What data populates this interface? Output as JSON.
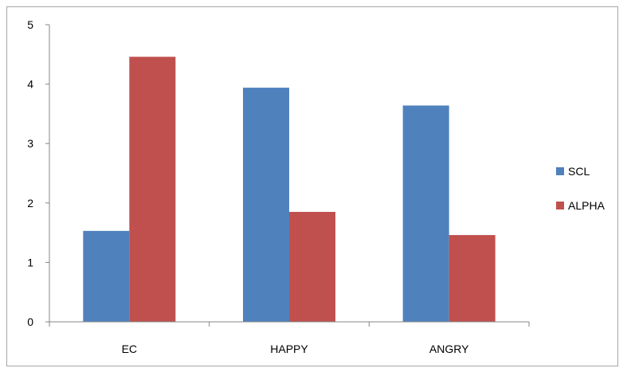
{
  "chart_data": {
    "type": "bar",
    "categories": [
      "EC",
      "HAPPY",
      "ANGRY"
    ],
    "series": [
      {
        "name": "SCL",
        "color": "#4f81bd",
        "values": [
          1.53,
          3.94,
          3.64
        ]
      },
      {
        "name": "ALPHA",
        "color": "#c0504d",
        "values": [
          4.46,
          1.85,
          1.46
        ]
      }
    ],
    "yticks": [
      "0",
      "1",
      "2",
      "3",
      "4",
      "5"
    ],
    "ylim": [
      0,
      5
    ],
    "grid": false,
    "legend": "right"
  }
}
